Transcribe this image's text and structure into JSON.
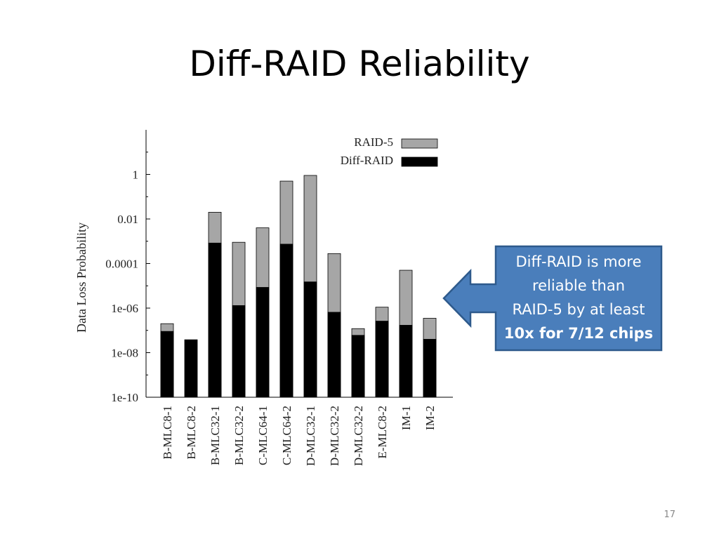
{
  "slide": {
    "title": "Diff-RAID Reliability",
    "page_number": "17"
  },
  "callout": {
    "lines": [
      "Diff-RAID is more",
      "reliable than",
      "RAID-5 by at least"
    ],
    "bold_line": "10x for 7/12 chips",
    "fill_color": "#4a7ebb",
    "border_color": "#2e5a8c"
  },
  "chart_data": {
    "type": "bar",
    "stacked": "overlay",
    "title": "",
    "xlabel": "",
    "ylabel": "Data Loss Probability",
    "yscale": "log",
    "ylim": [
      1e-10,
      100
    ],
    "yticks": [
      {
        "value": 1,
        "label": "1"
      },
      {
        "value": 0.01,
        "label": "0.01"
      },
      {
        "value": 0.0001,
        "label": "0.0001"
      },
      {
        "value": 1e-06,
        "label": "1e-06"
      },
      {
        "value": 1e-08,
        "label": "1e-08"
      },
      {
        "value": 1e-10,
        "label": "1e-10"
      }
    ],
    "categories": [
      "B-MLC8-1",
      "B-MLC8-2",
      "B-MLC32-1",
      "B-MLC32-2",
      "C-MLC64-1",
      "C-MLC64-2",
      "D-MLC32-1",
      "D-MLC32-2",
      "D-MLC32-2",
      "E-MLC8-2",
      "IM-1",
      "IM-2"
    ],
    "series": [
      {
        "name": "RAID-5",
        "color": "#a6a6a6",
        "values": [
          2e-07,
          null,
          0.02,
          0.0009,
          0.004,
          0.5,
          0.9,
          0.00028,
          1.2e-07,
          1.1e-06,
          5e-05,
          3.5e-07
        ]
      },
      {
        "name": "Diff-RAID",
        "color": "#000000",
        "values": [
          9e-08,
          3.8e-08,
          0.00083,
          1.3e-06,
          8.5e-06,
          0.00074,
          1.5e-05,
          6.5e-07,
          6e-08,
          2.6e-07,
          1.7e-07,
          4e-08
        ]
      }
    ],
    "legend": "top-right",
    "grid": false
  }
}
